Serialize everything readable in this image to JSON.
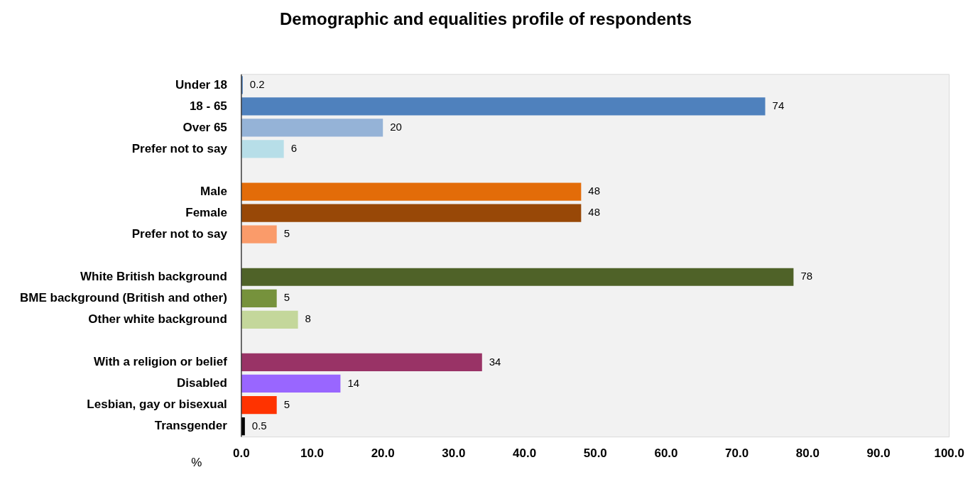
{
  "chart_data": {
    "type": "bar",
    "orientation": "horizontal",
    "title": "Demographic and equalities profile of respondents",
    "xlabel": "%",
    "categories": [
      "Under 18",
      "18 - 65",
      "Over 65",
      "Prefer not to say",
      null,
      "Male",
      "Female",
      "Prefer not to say",
      null,
      "White British background",
      "BME background (British and other)",
      "Other white background",
      null,
      "With a religion or belief",
      "Disabled",
      "Lesbian, gay or bisexual",
      "Transgender"
    ],
    "values": [
      0.2,
      74,
      20,
      6,
      null,
      48,
      48,
      5,
      null,
      78,
      5,
      8,
      null,
      34,
      14,
      5,
      0.5
    ],
    "colors": [
      "#4f81bd",
      "#4f81bd",
      "#95b3d7",
      "#b7dee8",
      null,
      "#e36c09",
      "#984807",
      "#fa9b6a",
      null,
      "#4f6228",
      "#76923c",
      "#c4d79b",
      null,
      "#993366",
      "#9966ff",
      "#ff3300",
      "#000000"
    ],
    "xlim": [
      0,
      100
    ],
    "xticks": [
      {
        "value": 0,
        "label": "0.0"
      },
      {
        "value": 10,
        "label": "10.0"
      },
      {
        "value": 20,
        "label": "20.0"
      },
      {
        "value": 30,
        "label": "30.0"
      },
      {
        "value": 40,
        "label": "40.0"
      },
      {
        "value": 50,
        "label": "50.0"
      },
      {
        "value": 60,
        "label": "60.0"
      },
      {
        "value": 70,
        "label": "70.0"
      },
      {
        "value": 80,
        "label": "80.0"
      },
      {
        "value": 90,
        "label": "90.0"
      },
      {
        "value": 100,
        "label": "100.0"
      }
    ],
    "data_labels": true,
    "grid": false,
    "legend": false
  }
}
